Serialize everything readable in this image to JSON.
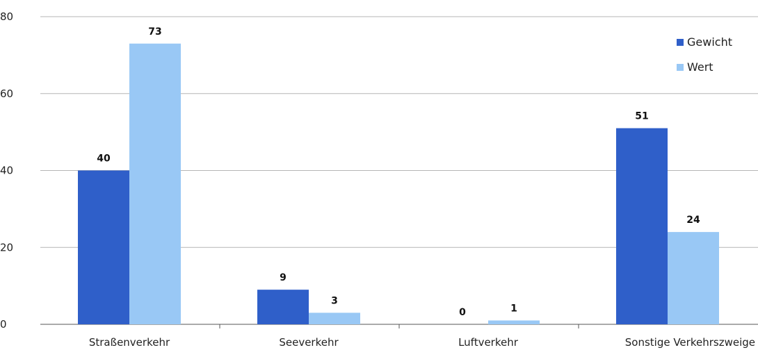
{
  "chart_data": {
    "type": "bar",
    "categories": [
      "Straßenverkehr",
      "Seeverkehr",
      "Luftverkehr",
      "Sonstige Verkehrszweige"
    ],
    "series": [
      {
        "name": "Gewicht",
        "values": [
          40,
          9,
          0,
          51
        ],
        "color": "#2f5fc9"
      },
      {
        "name": "Wert",
        "values": [
          73,
          3,
          1,
          24
        ],
        "color": "#99c8f5"
      }
    ],
    "ylim": [
      0,
      80
    ],
    "yticks": [
      0,
      20,
      40,
      60,
      80
    ],
    "grid": true,
    "legend_position": "top-right",
    "data_labels": true
  }
}
